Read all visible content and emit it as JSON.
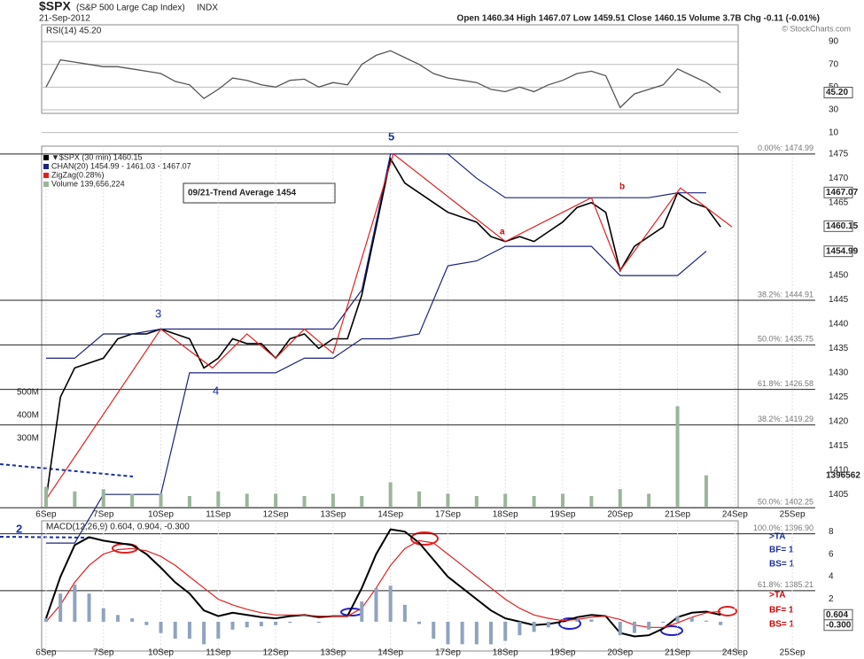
{
  "header": {
    "symbol": "$SPX",
    "name": "(S&P 500 Large Cap Index)",
    "exchange": "INDX",
    "date": "21-Sep-2012",
    "quote": "Open 1460.34  High 1467.07  Low 1459.51  Close 1460.15  Volume 3.7B  Chg -0.11 (-0.01%)",
    "credit": "© StockCharts.com"
  },
  "annotations": {
    "trend": "09/21-Trend Average 1454",
    "waves": [
      "5",
      "3",
      "4",
      "a",
      "b",
      "2"
    ],
    "signals_blue": [
      ">TA",
      "BF= 1",
      "BS= 1"
    ],
    "signals_red": [
      ">TA",
      "BF= 1",
      "BS= 1"
    ]
  },
  "chart_data": [
    {
      "type": "rsi",
      "title": "RSI(14) 45.20",
      "xlim": [
        -0.2,
        13.6
      ],
      "ylim": [
        0,
        100
      ],
      "yticks": [
        90,
        70,
        50,
        30,
        10
      ],
      "value_markers": [
        {
          "value": 45.2,
          "label": "45.20"
        }
      ],
      "series": [
        {
          "name": "RSI(14)",
          "color": "#555555",
          "x": [
            0,
            0.25,
            0.5,
            0.75,
            1,
            1.25,
            1.5,
            1.75,
            2,
            2.25,
            2.5,
            2.75,
            3,
            3.25,
            3.5,
            3.75,
            4,
            4.25,
            4.5,
            4.75,
            5,
            5.25,
            5.5,
            5.75,
            6,
            6.25,
            6.5,
            6.75,
            7,
            7.25,
            7.5,
            7.75,
            8,
            8.25,
            8.5,
            8.75,
            9,
            9.25,
            9.5,
            9.75,
            10,
            10.25,
            10.5,
            10.75,
            11,
            11.25,
            11.5,
            11.75
          ],
          "values": [
            50,
            74,
            72,
            70,
            68,
            68,
            66,
            64,
            62,
            55,
            52,
            40,
            48,
            58,
            56,
            52,
            50,
            56,
            57,
            50,
            54,
            52,
            70,
            78,
            82,
            76,
            70,
            62,
            58,
            56,
            54,
            48,
            46,
            50,
            46,
            52,
            56,
            62,
            64,
            60,
            32,
            44,
            48,
            52,
            66,
            60,
            54,
            45.2
          ]
        }
      ]
    },
    {
      "type": "price",
      "xlim": [
        -0.2,
        13.6
      ],
      "ylim": [
        1402.3,
        1476.6
      ],
      "yticks": [
        1475,
        1470,
        1465,
        1460,
        1455,
        1450,
        1445,
        1440,
        1435,
        1430,
        1425,
        1420,
        1415,
        1410,
        1405
      ],
      "y2lim": [
        0,
        1570000000
      ],
      "y2ticks": [
        {
          "value": 500000000,
          "label": "500M"
        },
        {
          "value": 400000000,
          "label": "400M"
        },
        {
          "value": 300000000,
          "label": "300M"
        }
      ],
      "xticks": [
        {
          "value": 0,
          "label": "6Sep"
        },
        {
          "value": 1,
          "label": "7Sep"
        },
        {
          "value": 2,
          "label": "10Sep"
        },
        {
          "value": 3,
          "label": "11Sep"
        },
        {
          "value": 4,
          "label": "12Sep"
        },
        {
          "value": 5,
          "label": "13Sep"
        },
        {
          "value": 6,
          "label": "14Sep"
        },
        {
          "value": 7,
          "label": "17Sep"
        },
        {
          "value": 8,
          "label": "18Sep"
        },
        {
          "value": 9,
          "label": "19Sep"
        },
        {
          "value": 10,
          "label": "20Sep"
        },
        {
          "value": 11,
          "label": "21Sep"
        },
        {
          "value": 12,
          "label": "24Sep"
        },
        {
          "value": 13,
          "label": "25Sep"
        }
      ],
      "value_markers": [
        1467.07,
        1460.15,
        1454.99
      ],
      "volume_marker": "1396562",
      "fib_levels": [
        {
          "value": 1474.99,
          "label": "0.00%: 1474.99"
        },
        {
          "value": 1444.91,
          "label": "38.2%: 1444.91"
        },
        {
          "value": 1435.75,
          "label": "50.0%: 1435.75"
        },
        {
          "value": 1426.58,
          "label": "61.8%: 1426.58"
        },
        {
          "value": 1419.29,
          "label": "38.2%: 1419.29"
        },
        {
          "value": 1402.25,
          "label": "50.0%: 1402.25"
        },
        {
          "value": 1396.9,
          "label": "100.0%: 1396.90"
        },
        {
          "value": 1385.21,
          "label": "61.8%: 1385.21"
        }
      ],
      "series": [
        {
          "name": "▼$SPX (30 min) 1460.15",
          "color": "#000000",
          "x": [
            0,
            0.25,
            0.5,
            0.75,
            1,
            1.25,
            1.5,
            1.75,
            2,
            2.25,
            2.5,
            2.75,
            3,
            3.25,
            3.5,
            3.75,
            4,
            4.25,
            4.5,
            4.75,
            5,
            5.25,
            5.5,
            5.75,
            6,
            6.25,
            6.5,
            6.75,
            7,
            7.25,
            7.5,
            7.75,
            8,
            8.25,
            8.5,
            8.75,
            9,
            9.25,
            9.5,
            9.75,
            10,
            10.25,
            10.5,
            10.75,
            11,
            11.25,
            11.5,
            11.75
          ],
          "values": [
            1404,
            1425,
            1431,
            1432,
            1433,
            1437,
            1438,
            1438,
            1439,
            1438,
            1437,
            1431,
            1433,
            1437,
            1436,
            1436,
            1433,
            1437,
            1438,
            1435,
            1437,
            1437,
            1446,
            1460,
            1474,
            1469,
            1467,
            1465,
            1463,
            1462,
            1461,
            1458,
            1457,
            1458,
            1457,
            1459,
            1461,
            1464,
            1465,
            1463,
            1451,
            1456,
            1458,
            1460,
            1467,
            1465,
            1464,
            1460
          ]
        },
        {
          "name": "CHAN(20) 1454.99 - 1461.03 - 1467.07",
          "color": "#1a237e",
          "x": [
            0,
            0.5,
            1,
            1.5,
            2,
            2.5,
            3,
            3.5,
            4,
            4.5,
            5,
            5.5,
            6,
            6.5,
            7,
            7.5,
            8,
            8.5,
            9,
            9.5,
            10,
            10.5,
            11,
            11.5
          ],
          "upper": [
            1433,
            1433,
            1438,
            1438,
            1439,
            1439,
            1439,
            1439,
            1439,
            1439,
            1439,
            1447,
            1475,
            1475,
            1475,
            1470,
            1466,
            1466,
            1466,
            1466,
            1466,
            1466,
            1467,
            1467
          ],
          "lower": [
            1395,
            1395,
            1405,
            1405,
            1405,
            1430,
            1430,
            1430,
            1430,
            1433,
            1433,
            1437,
            1437,
            1438,
            1452,
            1453,
            1456,
            1456,
            1456,
            1456,
            1450,
            1450,
            1450,
            1455
          ]
        },
        {
          "name": "ZigZag(0.28%)",
          "color": "#e02020",
          "x": [
            0,
            2,
            2.9,
            3.5,
            4,
            4.5,
            5,
            6.05,
            8,
            9.5,
            10,
            11.05,
            11.95
          ],
          "values": [
            1404,
            1439,
            1431,
            1438,
            1433,
            1439,
            1434,
            1475,
            1457,
            1466,
            1451,
            1468,
            1460
          ]
        },
        {
          "name": "Volume 139,656,224",
          "color": "#9bb59b",
          "axis": "y2",
          "x": [
            0,
            0.5,
            1,
            1.5,
            2,
            2.5,
            3,
            3.5,
            4,
            4.5,
            5,
            5.5,
            6,
            6.5,
            7,
            7.5,
            8,
            8.5,
            9,
            9.5,
            10,
            10.5,
            11,
            11.5
          ],
          "values": [
            90000000,
            70000000,
            80000000,
            60000000,
            60000000,
            50000000,
            70000000,
            60000000,
            60000000,
            50000000,
            60000000,
            50000000,
            110000000,
            70000000,
            60000000,
            50000000,
            60000000,
            50000000,
            60000000,
            50000000,
            80000000,
            60000000,
            440000000,
            140000000
          ]
        }
      ]
    },
    {
      "type": "macd",
      "title": "MACD(12,26,9) 0.604, 0.904, -0.300",
      "xlim": [
        -0.2,
        13.6
      ],
      "ylim": [
        -2.6,
        8.8
      ],
      "yticks": [
        8,
        6,
        4,
        2
      ],
      "xticks": [
        {
          "value": 0,
          "label": "6Sep"
        },
        {
          "value": 1,
          "label": "7Sep"
        },
        {
          "value": 2,
          "label": "10Sep"
        },
        {
          "value": 3,
          "label": "11Sep"
        },
        {
          "value": 4,
          "label": "12Sep"
        },
        {
          "value": 5,
          "label": "13Sep"
        },
        {
          "value": 6,
          "label": "14Sep"
        },
        {
          "value": 7,
          "label": "17Sep"
        },
        {
          "value": 8,
          "label": "18Sep"
        },
        {
          "value": 9,
          "label": "19Sep"
        },
        {
          "value": 10,
          "label": "20Sep"
        },
        {
          "value": 11,
          "label": "21Sep"
        },
        {
          "value": 12,
          "label": "24Sep"
        },
        {
          "value": 13,
          "label": "25Sep"
        }
      ],
      "value_markers": [
        0.604,
        {
          "value": -0.3,
          "label": "-0.300"
        }
      ],
      "series": [
        {
          "name": "MACD",
          "color": "#000000",
          "x": [
            0,
            0.25,
            0.5,
            0.75,
            1,
            1.25,
            1.5,
            1.75,
            2,
            2.25,
            2.5,
            2.75,
            3,
            3.25,
            3.5,
            3.75,
            4,
            4.25,
            4.5,
            4.75,
            5,
            5.25,
            5.5,
            5.75,
            6,
            6.25,
            6.5,
            6.75,
            7,
            7.25,
            7.5,
            7.75,
            8,
            8.25,
            8.5,
            8.75,
            9,
            9.25,
            9.5,
            9.75,
            10,
            10.25,
            10.5,
            10.75,
            11,
            11.25,
            11.5,
            11.75
          ],
          "values": [
            0.3,
            4,
            6.8,
            7.5,
            7.2,
            7,
            6.8,
            6,
            4.8,
            3.5,
            2.5,
            1,
            0.5,
            0.8,
            0.6,
            0.4,
            0.3,
            0.5,
            0.6,
            0.4,
            0.5,
            0.5,
            3,
            6,
            8.2,
            8,
            7,
            5.5,
            4,
            3,
            2,
            1,
            0.3,
            0,
            -0.3,
            -0.2,
            0,
            0.4,
            0.6,
            0.5,
            -1,
            -1.3,
            -1.2,
            -0.6,
            0.4,
            0.8,
            0.9,
            0.604
          ]
        },
        {
          "name": "Signal",
          "color": "#e02020",
          "x": [
            0,
            0.25,
            0.5,
            0.75,
            1,
            1.25,
            1.5,
            1.75,
            2,
            2.25,
            2.5,
            2.75,
            3,
            3.25,
            3.5,
            3.75,
            4,
            4.25,
            4.5,
            4.75,
            5,
            5.25,
            5.5,
            5.75,
            6,
            6.25,
            6.5,
            6.75,
            7,
            7.25,
            7.5,
            7.75,
            8,
            8.25,
            8.5,
            8.75,
            9,
            9.25,
            9.5,
            9.75,
            10,
            10.25,
            10.5,
            10.75,
            11,
            11.25,
            11.5,
            11.75
          ],
          "values": [
            0,
            1.5,
            3.5,
            5,
            6,
            6.4,
            6.5,
            6.3,
            5.8,
            5,
            4,
            3,
            2,
            1.5,
            1.1,
            0.8,
            0.6,
            0.6,
            0.6,
            0.5,
            0.5,
            0.5,
            1.2,
            3,
            5,
            6.5,
            7.2,
            7,
            6,
            5,
            4,
            3,
            2,
            1.2,
            0.6,
            0.3,
            0.1,
            0.2,
            0.4,
            0.5,
            0.2,
            -0.3,
            -0.5,
            -0.5,
            -0.1,
            0.4,
            0.8,
            0.904
          ]
        },
        {
          "name": "Histogram",
          "color": "#8fa3bf",
          "x": [
            0,
            0.25,
            0.5,
            0.75,
            1,
            1.25,
            1.5,
            1.75,
            2,
            2.25,
            2.5,
            2.75,
            3,
            3.25,
            3.5,
            3.75,
            4,
            4.25,
            4.5,
            4.75,
            5,
            5.25,
            5.5,
            5.75,
            6,
            6.25,
            6.5,
            6.75,
            7,
            7.25,
            7.5,
            7.75,
            8,
            8.25,
            8.5,
            8.75,
            9,
            9.25,
            9.5,
            9.75,
            10,
            10.25,
            10.5,
            10.75,
            11,
            11.25,
            11.5,
            11.75
          ],
          "values": [
            0.3,
            2.5,
            3.3,
            2.5,
            1.2,
            0.6,
            0.3,
            -0.3,
            -1,
            -1.5,
            -1.5,
            -2,
            -1.5,
            -0.7,
            -0.5,
            -0.4,
            -0.3,
            -0.1,
            0,
            -0.1,
            0,
            0,
            1.8,
            3,
            3.2,
            1.5,
            -0.2,
            -1.5,
            -2,
            -2,
            -2,
            -2,
            -1.7,
            -1.2,
            -0.9,
            -0.5,
            -0.1,
            0.2,
            0.2,
            0,
            -1.2,
            -1,
            -0.7,
            -0.1,
            0.5,
            0.4,
            0.1,
            -0.3
          ]
        }
      ]
    }
  ]
}
